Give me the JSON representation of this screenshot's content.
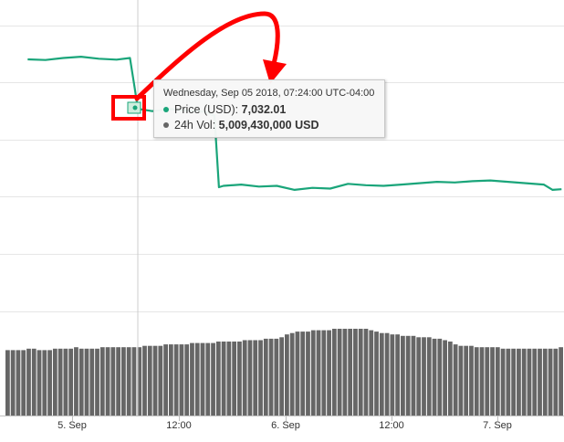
{
  "chart_data": {
    "type": "line",
    "title": "",
    "xlabel": "",
    "ylabel": "",
    "x_ticks": [
      "5. Sep",
      "12:00",
      "6. Sep",
      "12:00",
      "7. Sep"
    ],
    "grid": true,
    "series": [
      {
        "name": "Price (USD)",
        "color": "#1aa57a",
        "points": [
          [
            "Sep 04 19:00",
            7400
          ],
          [
            "Sep 04 21:00",
            7395
          ],
          [
            "Sep 04 23:00",
            7410
          ],
          [
            "Sep 05 01:00",
            7420
          ],
          [
            "Sep 05 03:00",
            7405
          ],
          [
            "Sep 05 05:00",
            7398
          ],
          [
            "Sep 05 06:30",
            7410
          ],
          [
            "Sep 05 07:00",
            7200
          ],
          [
            "Sep 05 07:24",
            7032.01
          ],
          [
            "Sep 05 09:00",
            7015
          ],
          [
            "Sep 05 11:00",
            7030
          ],
          [
            "Sep 05 13:00",
            7020
          ],
          [
            "Sep 05 15:00",
            7010
          ],
          [
            "Sep 05 16:00",
            6980
          ],
          [
            "Sep 05 16:30",
            6450
          ],
          [
            "Sep 05 17:00",
            6460
          ],
          [
            "Sep 05 19:00",
            6470
          ],
          [
            "Sep 05 21:00",
            6455
          ],
          [
            "Sep 05 23:00",
            6460
          ],
          [
            "Sep 06 01:00",
            6430
          ],
          [
            "Sep 06 03:00",
            6445
          ],
          [
            "Sep 06 05:00",
            6440
          ],
          [
            "Sep 06 07:00",
            6475
          ],
          [
            "Sep 06 09:00",
            6465
          ],
          [
            "Sep 06 11:00",
            6460
          ],
          [
            "Sep 06 13:00",
            6470
          ],
          [
            "Sep 06 15:00",
            6480
          ],
          [
            "Sep 06 17:00",
            6490
          ],
          [
            "Sep 06 19:00",
            6485
          ],
          [
            "Sep 06 21:00",
            6495
          ],
          [
            "Sep 06 23:00",
            6500
          ],
          [
            "Sep 07 01:00",
            6490
          ],
          [
            "Sep 07 03:00",
            6480
          ],
          [
            "Sep 07 05:00",
            6470
          ],
          [
            "Sep 07 06:00",
            6430
          ],
          [
            "Sep 07 07:00",
            6435
          ]
        ]
      },
      {
        "name": "24h Vol",
        "color": "#666666",
        "type": "bar",
        "values": [
          4.6,
          4.6,
          4.6,
          4.6,
          4.7,
          4.7,
          4.6,
          4.6,
          4.6,
          4.7,
          4.7,
          4.7,
          4.7,
          4.8,
          4.7,
          4.7,
          4.7,
          4.7,
          4.8,
          4.8,
          4.8,
          4.8,
          4.8,
          4.8,
          4.8,
          4.8,
          4.9,
          4.9,
          4.9,
          4.9,
          5.0,
          5.0,
          5.0,
          5.0,
          5.0,
          5.1,
          5.1,
          5.1,
          5.1,
          5.1,
          5.2,
          5.2,
          5.2,
          5.2,
          5.2,
          5.3,
          5.3,
          5.3,
          5.3,
          5.4,
          5.4,
          5.4,
          5.5,
          5.7,
          5.8,
          5.9,
          5.9,
          5.9,
          6.0,
          6.0,
          6.0,
          6.0,
          6.1,
          6.1,
          6.1,
          6.1,
          6.1,
          6.1,
          6.1,
          6.0,
          5.9,
          5.8,
          5.8,
          5.7,
          5.7,
          5.6,
          5.6,
          5.6,
          5.5,
          5.5,
          5.5,
          5.4,
          5.4,
          5.3,
          5.2,
          5.0,
          4.9,
          4.9,
          4.9,
          4.8,
          4.8,
          4.8,
          4.8,
          4.8,
          4.7,
          4.7,
          4.7,
          4.7,
          4.7,
          4.7,
          4.7,
          4.7,
          4.7,
          4.7,
          4.7,
          4.8
        ]
      }
    ],
    "crosshair": "Sep 05 07:24",
    "tooltip": {
      "title": "Wednesday, Sep 05 2018, 07:24:00 UTC-04:00",
      "rows": [
        {
          "label": "Price (USD):",
          "value": "7,032.01",
          "color": "#1aa57a"
        },
        {
          "label": "24h Vol:",
          "value": "5,009,430,000 USD",
          "color": "#666666"
        }
      ]
    }
  },
  "annotation": {
    "color": "#ff0000",
    "description_shape": "box-and-arrow"
  }
}
